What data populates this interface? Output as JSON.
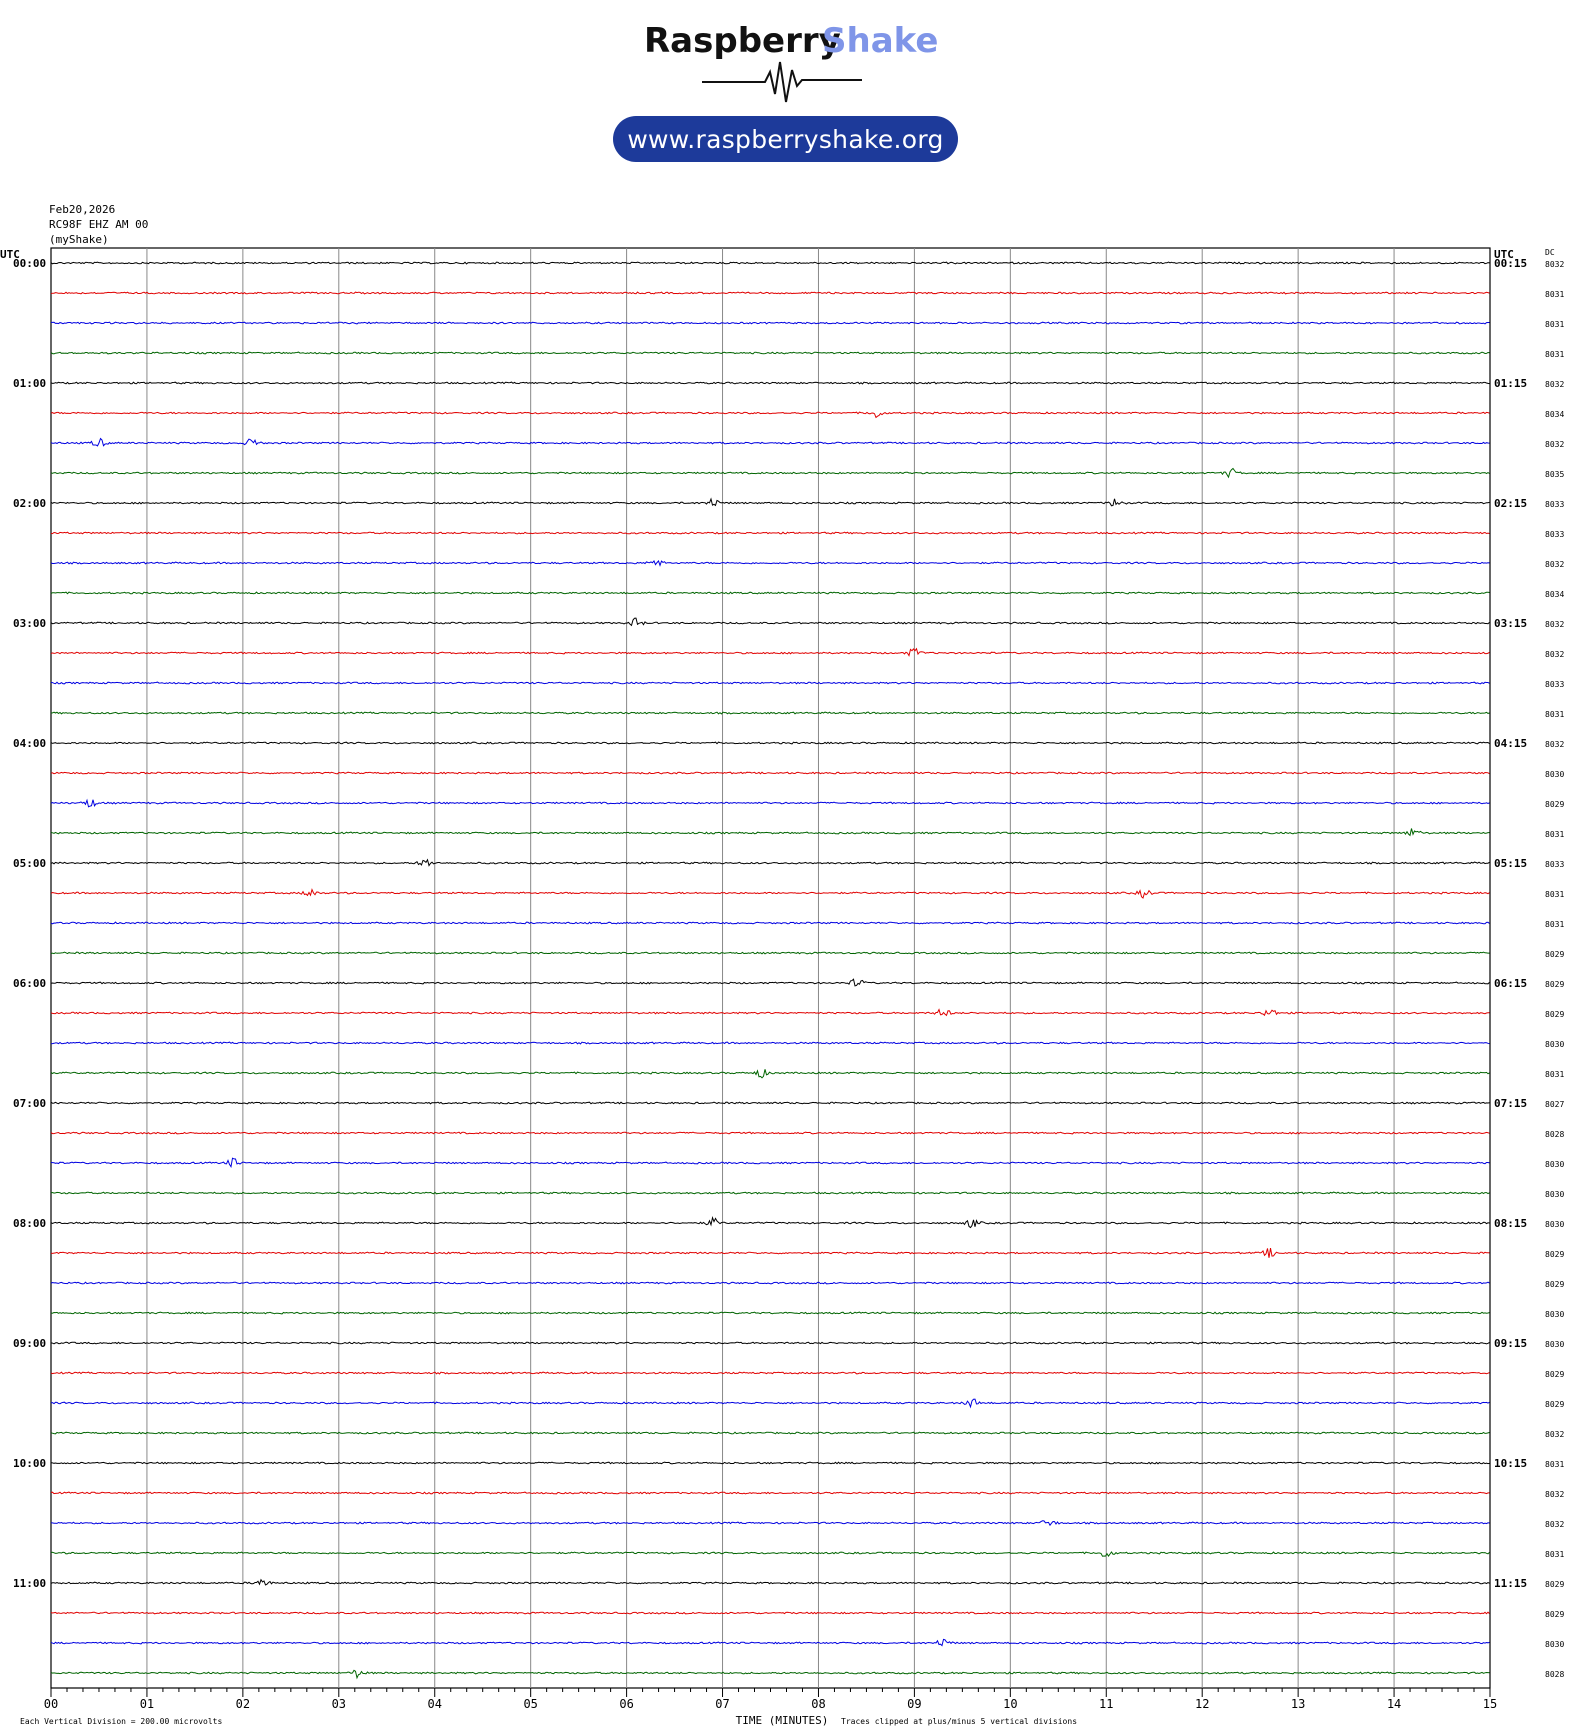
{
  "brand": {
    "name_part1": "Raspberry",
    "name_part2": "Shake",
    "url": "www.raspberryshake.org",
    "colors": {
      "dark": "#111111",
      "light": "#7f95e8",
      "pill": "#1d3a9a"
    }
  },
  "meta": {
    "date": "Feb20,2026",
    "station": "RC98F EHZ AM 00",
    "source": "(myShake)"
  },
  "chart_data": {
    "type": "line",
    "title": "",
    "xlabel": "TIME (MINUTES)",
    "left_axis_header": "UTC",
    "right_axis_header": "UTC",
    "dc_header": "DC",
    "xlim": [
      0,
      15
    ],
    "x_ticks": [
      "00",
      "01",
      "02",
      "03",
      "04",
      "05",
      "06",
      "07",
      "08",
      "09",
      "10",
      "11",
      "12",
      "13",
      "14",
      "15"
    ],
    "left_time_labels": [
      "00:00",
      "01:00",
      "02:00",
      "03:00",
      "04:00",
      "05:00",
      "06:00",
      "07:00",
      "08:00",
      "09:00",
      "10:00",
      "11:00"
    ],
    "right_time_labels": [
      "00:15",
      "01:15",
      "02:15",
      "03:15",
      "04:15",
      "05:15",
      "06:15",
      "07:15",
      "08:15",
      "09:15",
      "10:15",
      "11:15"
    ],
    "trace_colors": [
      "#000000",
      "#e00000",
      "#0000e0",
      "#006400"
    ],
    "dc_values": [
      "8032",
      "8031",
      "8031",
      "8031",
      "8032",
      "8034",
      "8032",
      "8035",
      "8033",
      "8033",
      "8032",
      "8034",
      "8032",
      "8032",
      "8033",
      "8031",
      "8032",
      "8030",
      "8029",
      "8031",
      "8033",
      "8031",
      "8031",
      "8029",
      "8029",
      "8029",
      "8030",
      "8031",
      "8027",
      "8028",
      "8030",
      "8030",
      "8030",
      "8029",
      "8029",
      "8030",
      "8030",
      "8029",
      "8029",
      "8032",
      "8031",
      "8032",
      "8032",
      "8031",
      "8029",
      "8029",
      "8030",
      "8028"
    ],
    "events": [
      {
        "trace": 5,
        "minute": 8.6
      },
      {
        "trace": 6,
        "minute": 0.5
      },
      {
        "trace": 6,
        "minute": 2.1
      },
      {
        "trace": 7,
        "minute": 12.3
      },
      {
        "trace": 8,
        "minute": 6.9
      },
      {
        "trace": 8,
        "minute": 11.1
      },
      {
        "trace": 10,
        "minute": 6.3
      },
      {
        "trace": 12,
        "minute": 6.1
      },
      {
        "trace": 13,
        "minute": 9.0
      },
      {
        "trace": 18,
        "minute": 0.4
      },
      {
        "trace": 19,
        "minute": 14.2
      },
      {
        "trace": 20,
        "minute": 3.9
      },
      {
        "trace": 21,
        "minute": 2.7
      },
      {
        "trace": 21,
        "minute": 11.4
      },
      {
        "trace": 24,
        "minute": 8.4
      },
      {
        "trace": 25,
        "minute": 9.3
      },
      {
        "trace": 25,
        "minute": 12.7
      },
      {
        "trace": 27,
        "minute": 7.4
      },
      {
        "trace": 30,
        "minute": 1.9
      },
      {
        "trace": 32,
        "minute": 6.9
      },
      {
        "trace": 32,
        "minute": 9.6
      },
      {
        "trace": 33,
        "minute": 12.7
      },
      {
        "trace": 38,
        "minute": 9.6
      },
      {
        "trace": 42,
        "minute": 10.4
      },
      {
        "trace": 43,
        "minute": 11.0
      },
      {
        "trace": 44,
        "minute": 2.2
      },
      {
        "trace": 46,
        "minute": 9.3
      },
      {
        "trace": 47,
        "minute": 3.2
      }
    ],
    "footer_left": "Each Vertical Division =  200.00 microvolts",
    "footer_right": "Traces clipped at plus/minus 5 vertical divisions"
  }
}
